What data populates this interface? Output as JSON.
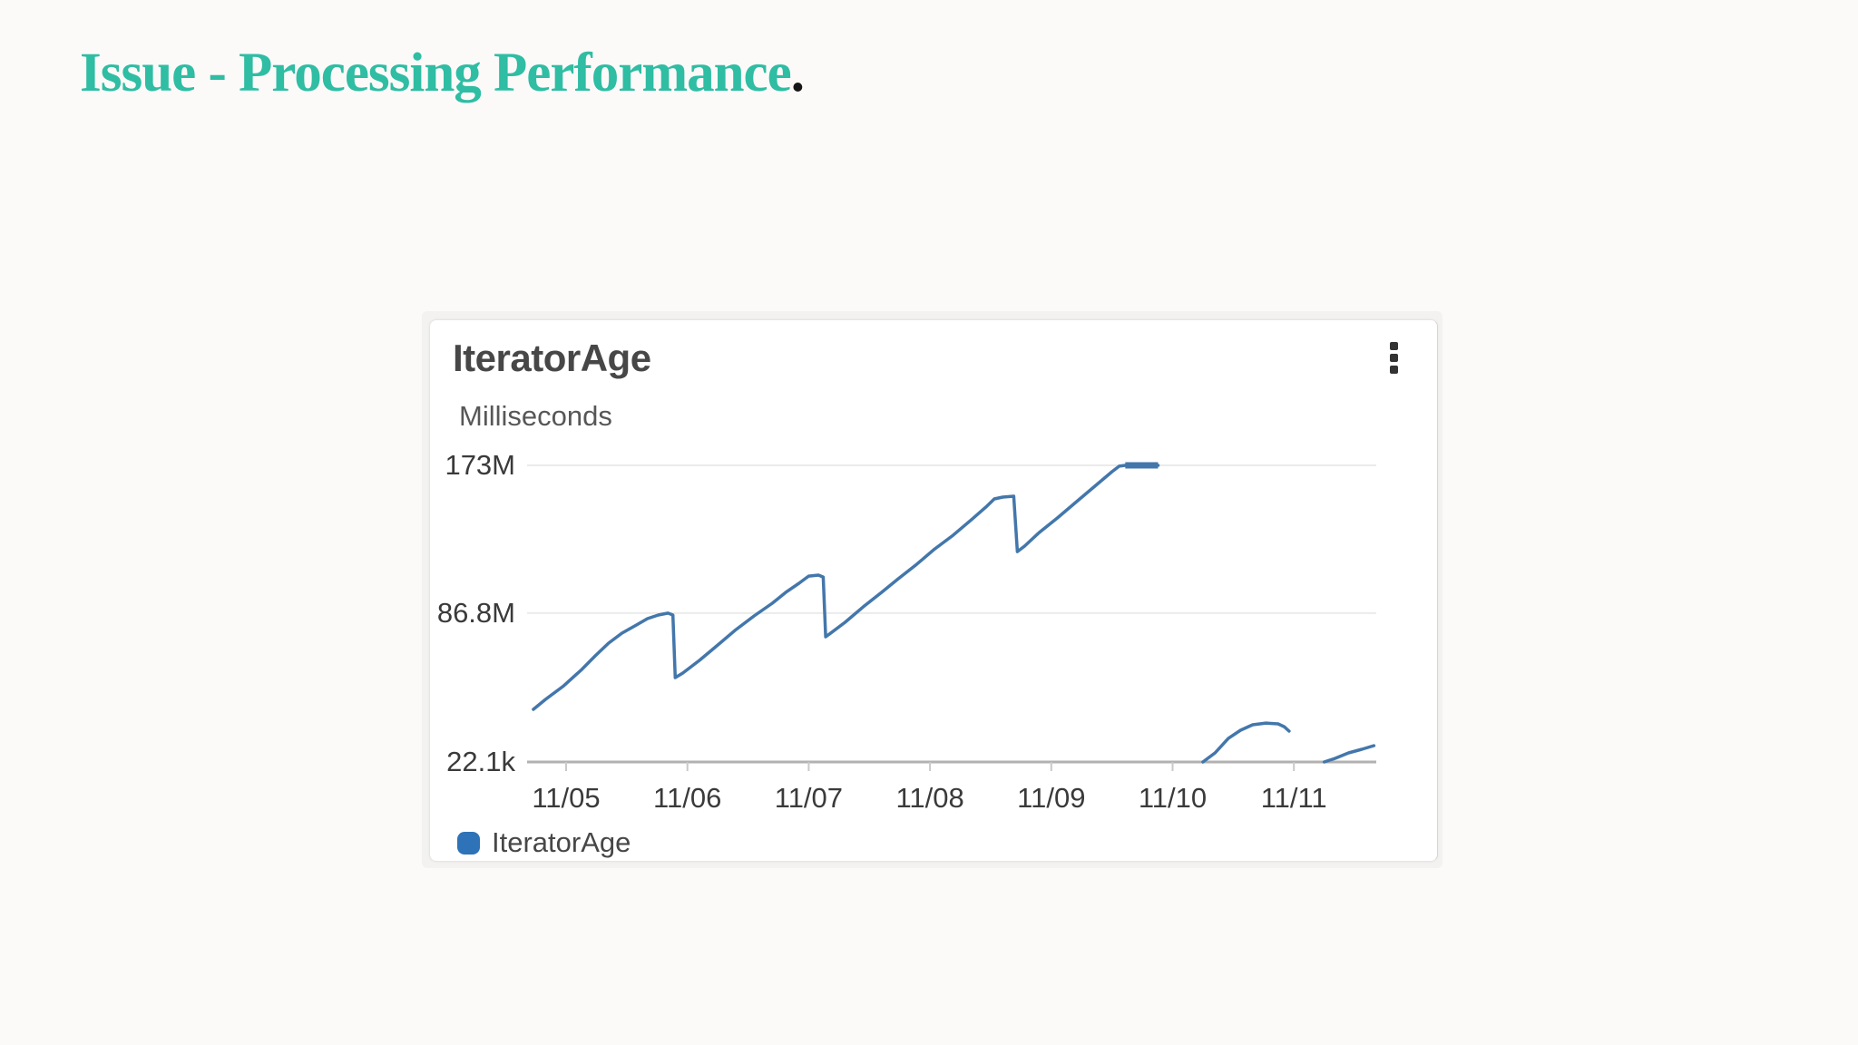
{
  "slide": {
    "title_text": "Issue - Processing Performance",
    "title_period": ".",
    "title_color": "#2fbda3",
    "background_color": "#fbfaf9"
  },
  "widget": {
    "title": "IteratorAge",
    "unit_label": "Milliseconds",
    "menu_icon": "kebab-vertical-icon",
    "legend": {
      "label": "IteratorAge",
      "swatch_color": "#2e72b8"
    }
  },
  "chart_data": {
    "type": "line",
    "title": "IteratorAge",
    "ylabel": "Milliseconds",
    "legend_position": "bottom-left",
    "grid": true,
    "x_tick_labels": [
      "11/05",
      "11/06",
      "11/07",
      "11/08",
      "11/09",
      "11/10",
      "11/11"
    ],
    "y_ticks": [
      {
        "label": "173M",
        "value_M_ms": 173
      },
      {
        "label": "86.8M",
        "value_M_ms": 86.8
      },
      {
        "label": "22.1k",
        "value_M_ms": 0.0221
      }
    ],
    "ylim_M_ms": [
      0,
      173
    ],
    "x_unit": "days relative to 11/05",
    "series": [
      {
        "name": "IteratorAge",
        "color": "#4377ab",
        "max_clip_M_ms": 173,
        "segments_t_vM": [
          [
            [
              -0.27,
              30.7
            ],
            [
              -0.17,
              36.5
            ],
            [
              -0.02,
              44.4
            ],
            [
              0.13,
              54.0
            ],
            [
              0.24,
              61.9
            ],
            [
              0.35,
              69.3
            ],
            [
              0.46,
              75.1
            ],
            [
              0.58,
              79.9
            ],
            [
              0.67,
              83.6
            ],
            [
              0.76,
              85.7
            ],
            [
              0.84,
              86.8
            ],
            [
              0.88,
              85.7
            ],
            [
              0.9,
              49.2
            ],
            [
              0.96,
              51.8
            ],
            [
              1.1,
              59.3
            ],
            [
              1.25,
              68.2
            ],
            [
              1.4,
              77.2
            ],
            [
              1.55,
              85.2
            ],
            [
              1.7,
              92.6
            ],
            [
              1.81,
              98.9
            ],
            [
              1.92,
              104.2
            ],
            [
              2.0,
              108.4
            ],
            [
              2.08,
              109.0
            ],
            [
              2.12,
              107.9
            ],
            [
              2.14,
              73.0
            ],
            [
              2.19,
              75.6
            ],
            [
              2.3,
              81.5
            ],
            [
              2.45,
              90.5
            ],
            [
              2.6,
              98.9
            ],
            [
              2.74,
              106.9
            ],
            [
              2.89,
              115.3
            ],
            [
              3.04,
              124.3
            ],
            [
              3.19,
              132.2
            ],
            [
              3.34,
              141.2
            ],
            [
              3.46,
              148.6
            ],
            [
              3.53,
              153.4
            ],
            [
              3.6,
              154.5
            ],
            [
              3.69,
              155.0
            ],
            [
              3.72,
              122.7
            ],
            [
              3.78,
              125.9
            ],
            [
              3.9,
              133.8
            ],
            [
              4.05,
              142.3
            ],
            [
              4.2,
              151.3
            ],
            [
              4.35,
              160.3
            ],
            [
              4.5,
              169.3
            ],
            [
              4.56,
              172.5
            ],
            [
              4.61,
              173.0
            ],
            [
              4.88,
              173.0
            ]
          ],
          [
            [
              5.25,
              0.0
            ],
            [
              5.35,
              5.3
            ],
            [
              5.46,
              13.8
            ],
            [
              5.56,
              18.5
            ],
            [
              5.66,
              21.7
            ],
            [
              5.77,
              22.7
            ],
            [
              5.87,
              22.2
            ],
            [
              5.92,
              20.6
            ],
            [
              5.96,
              18.0
            ]
          ],
          [
            [
              6.25,
              0.0
            ],
            [
              6.34,
              2.1
            ],
            [
              6.45,
              5.3
            ],
            [
              6.56,
              7.4
            ],
            [
              6.66,
              9.5
            ]
          ]
        ]
      }
    ]
  }
}
